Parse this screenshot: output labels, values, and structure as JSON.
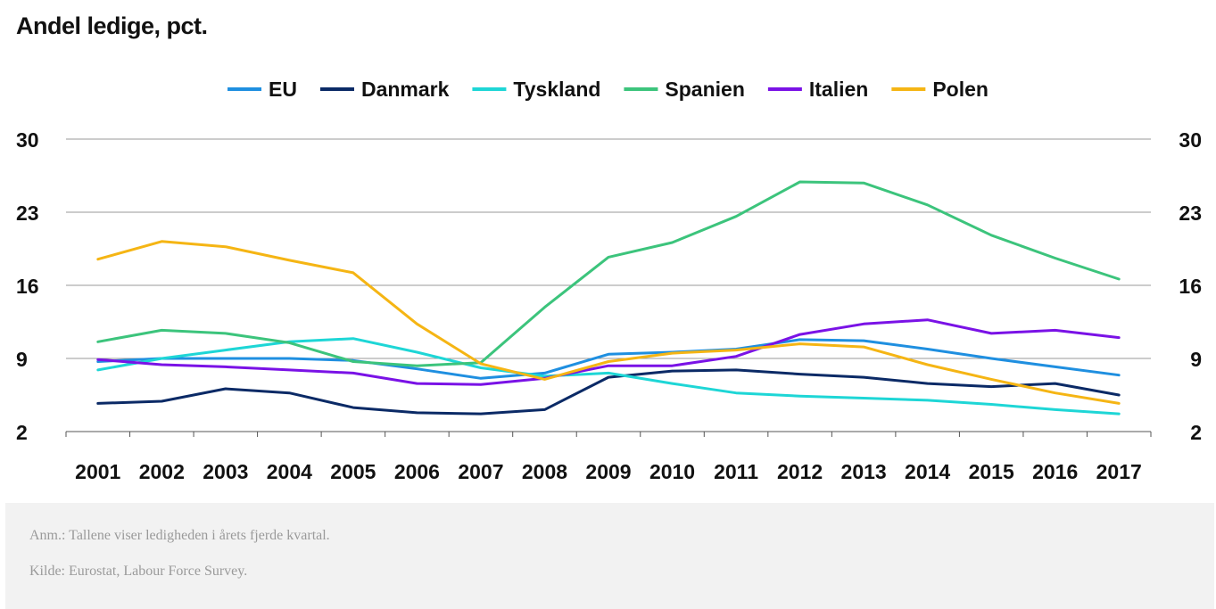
{
  "chart_data": {
    "type": "line",
    "title": "Andel ledige, pct.",
    "x": [
      "2001",
      "2002",
      "2003",
      "2004",
      "2005",
      "2006",
      "2007",
      "2008",
      "2009",
      "2010",
      "2011",
      "2012",
      "2013",
      "2014",
      "2015",
      "2016",
      "2017"
    ],
    "y_ticks": [
      2,
      9,
      16,
      23,
      30
    ],
    "ylim": [
      2,
      30
    ],
    "grid": true,
    "legend_position": "top-center",
    "dual_y_axis": true,
    "series": [
      {
        "name": "EU",
        "color": "#1f8fe0",
        "values": [
          8.7,
          9.0,
          9.0,
          9.0,
          8.8,
          8.0,
          7.1,
          7.6,
          9.4,
          9.6,
          9.9,
          10.8,
          10.7,
          9.9,
          9.0,
          8.2,
          7.4
        ]
      },
      {
        "name": "Danmark",
        "color": "#0b2a66",
        "values": [
          4.7,
          4.9,
          6.1,
          5.7,
          4.3,
          3.8,
          3.7,
          4.1,
          7.2,
          7.8,
          7.9,
          7.5,
          7.2,
          6.6,
          6.3,
          6.6,
          5.5
        ]
      },
      {
        "name": "Tyskland",
        "color": "#1ed6d6",
        "values": [
          7.9,
          9.0,
          9.8,
          10.6,
          10.9,
          9.6,
          8.1,
          7.3,
          7.6,
          6.6,
          5.7,
          5.4,
          5.2,
          5.0,
          4.6,
          4.1,
          3.7
        ]
      },
      {
        "name": "Spanien",
        "color": "#3cc47c",
        "values": [
          10.6,
          11.7,
          11.4,
          10.5,
          8.7,
          8.3,
          8.6,
          13.9,
          18.7,
          20.1,
          22.6,
          25.9,
          25.8,
          23.7,
          20.8,
          18.6,
          16.6
        ]
      },
      {
        "name": "Italien",
        "color": "#7a12e6",
        "values": [
          8.9,
          8.4,
          8.2,
          7.9,
          7.6,
          6.6,
          6.5,
          7.1,
          8.3,
          8.3,
          9.2,
          11.3,
          12.3,
          12.7,
          11.4,
          11.7,
          11.0
        ]
      },
      {
        "name": "Polen",
        "color": "#f5b514",
        "values": [
          18.5,
          20.2,
          19.7,
          18.4,
          17.2,
          12.3,
          8.5,
          7.0,
          8.7,
          9.5,
          9.8,
          10.4,
          10.1,
          8.4,
          7.0,
          5.7,
          4.7
        ]
      }
    ]
  },
  "footer": {
    "note": "Anm.: Tallene viser ledigheden i årets fjerde kvartal.",
    "source": "Kilde: Eurostat, Labour Force Survey."
  }
}
